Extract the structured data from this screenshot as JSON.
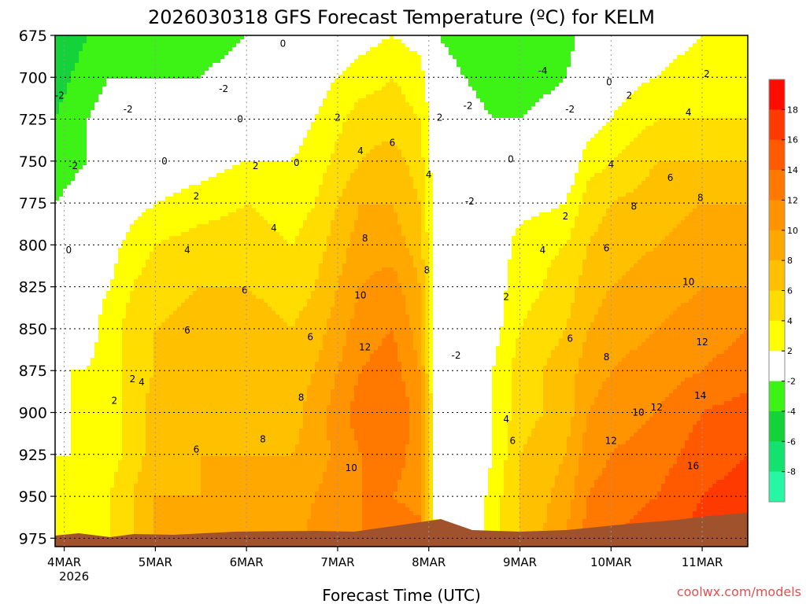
{
  "chart_data": {
    "type": "heatmap",
    "title": "2026030318 GFS Forecast Temperature (ºC) for KELM",
    "xlabel": "Forecast Time (UTC)",
    "ylabel": "",
    "credit": "coolwx.com/models",
    "x_ticks": [
      "4MAR",
      "5MAR",
      "6MAR",
      "7MAR",
      "8MAR",
      "9MAR",
      "10MAR",
      "11MAR"
    ],
    "x_year": "2026",
    "y_ticks": [
      675,
      700,
      725,
      750,
      775,
      800,
      825,
      850,
      875,
      900,
      925,
      950,
      975
    ],
    "ylim": [
      675,
      980
    ],
    "xlim_days": [
      3.9,
      11.5
    ],
    "colorbar": {
      "levels": [
        -10,
        -8,
        -6,
        -4,
        -2,
        2,
        4,
        6,
        8,
        10,
        12,
        14,
        16,
        18,
        20
      ],
      "colors": [
        "#27f7a3",
        "#13e36e",
        "#14d23a",
        "#3df316",
        "#ffffff",
        "#ffff00",
        "#ffdd00",
        "#ffc000",
        "#ffa800",
        "#ff9300",
        "#ff7800",
        "#ff5a00",
        "#ff3a00",
        "#ff0b00"
      ],
      "tick_labels": [
        "-8",
        "-6",
        "-4",
        "-2",
        "2",
        "4",
        "6",
        "8",
        "10",
        "12",
        "14",
        "16",
        "18"
      ]
    },
    "grid": true,
    "temperature_series": [
      {
        "day": 3.9,
        "profile": [
          -6,
          -5,
          -4,
          -3,
          -2,
          -1,
          0,
          1,
          2,
          1,
          2,
          3,
          2
        ]
      },
      {
        "day": 4.25,
        "profile": [
          -4,
          -3,
          -2,
          -2,
          -1,
          0,
          1,
          1,
          2,
          3,
          2,
          2,
          2
        ]
      },
      {
        "day": 4.5,
        "profile": [
          -3,
          -2,
          -1,
          0,
          0,
          1,
          2,
          3,
          3,
          3,
          3,
          4,
          4
        ]
      },
      {
        "day": 4.75,
        "profile": [
          -3,
          -2,
          -1,
          0,
          1,
          3,
          4,
          5,
          5,
          5,
          5,
          6,
          6
        ]
      },
      {
        "day": 5.0,
        "profile": [
          -3,
          -2,
          -1,
          0,
          2,
          4,
          5,
          6,
          6,
          7,
          7,
          8,
          8
        ]
      },
      {
        "day": 5.5,
        "profile": [
          -3,
          -2,
          -1,
          1,
          3,
          5,
          6,
          7,
          7,
          7,
          8,
          8,
          8
        ]
      },
      {
        "day": 6.0,
        "profile": [
          -2,
          -1,
          0,
          2,
          4,
          5,
          6,
          7,
          7,
          8,
          8,
          9,
          9
        ]
      },
      {
        "day": 6.5,
        "profile": [
          -1,
          0,
          1,
          2,
          3,
          4,
          5,
          6,
          7,
          7,
          8,
          8,
          9
        ]
      },
      {
        "day": 6.75,
        "profile": [
          0,
          1,
          2,
          3,
          4,
          5,
          6,
          7,
          8,
          9,
          9,
          10,
          11
        ]
      },
      {
        "day": 7.25,
        "profile": [
          1,
          3,
          5,
          6,
          8,
          9,
          10,
          11,
          12,
          13,
          12,
          12,
          12
        ]
      },
      {
        "day": 7.6,
        "profile": [
          2,
          4,
          5,
          7,
          8,
          9,
          11,
          12,
          13,
          14,
          13,
          12,
          14
        ]
      },
      {
        "day": 7.9,
        "profile": [
          1,
          3,
          4,
          5,
          6,
          7,
          8,
          9,
          10,
          11,
          11,
          11,
          13
        ]
      },
      {
        "day": 8.1,
        "profile": [
          -2,
          -1,
          0,
          0,
          0,
          0,
          0,
          0,
          0,
          0,
          0,
          0,
          0
        ]
      },
      {
        "day": 8.4,
        "profile": [
          -3,
          -2,
          -1,
          -1,
          -1,
          -2,
          -2,
          -2,
          -2,
          -2,
          -1,
          -1,
          0
        ]
      },
      {
        "day": 8.7,
        "profile": [
          -4,
          -3,
          -2,
          -1,
          -1,
          0,
          1,
          1,
          2,
          2,
          2,
          3,
          3
        ]
      },
      {
        "day": 9.0,
        "profile": [
          -4,
          -3,
          -2,
          -1,
          1,
          3,
          3,
          4,
          5,
          5,
          6,
          6,
          6
        ]
      },
      {
        "day": 9.5,
        "profile": [
          -3,
          -2,
          -1,
          0,
          2,
          4,
          5,
          6,
          7,
          7,
          8,
          9,
          10
        ]
      },
      {
        "day": 9.75,
        "profile": [
          -1,
          0,
          1,
          3,
          5,
          6,
          7,
          8,
          9,
          10,
          11,
          12,
          13
        ]
      },
      {
        "day": 10.0,
        "profile": [
          0,
          1,
          2,
          4,
          6,
          7,
          8,
          9,
          10,
          11,
          12,
          13,
          14
        ]
      },
      {
        "day": 10.5,
        "profile": [
          1,
          2,
          4,
          6,
          7,
          8,
          9,
          10,
          11,
          12,
          13,
          14,
          15
        ]
      },
      {
        "day": 11.0,
        "profile": [
          2,
          3,
          4,
          6,
          8,
          9,
          10,
          11,
          12,
          14,
          15,
          16,
          17
        ]
      },
      {
        "day": 11.5,
        "profile": [
          2,
          3,
          4,
          6,
          8,
          9,
          10,
          12,
          13,
          15,
          16,
          17,
          18
        ]
      }
    ],
    "contour_labels": [
      {
        "text": "0",
        "day": 8.9,
        "p": 749
      },
      {
        "text": "0",
        "day": 4.05,
        "p": 803
      },
      {
        "text": "0",
        "day": 5.1,
        "p": 750
      },
      {
        "text": "0",
        "day": 5.93,
        "p": 725
      },
      {
        "text": "0",
        "day": 6.4,
        "p": 680
      },
      {
        "text": "0",
        "day": 6.55,
        "p": 751
      },
      {
        "text": "0",
        "day": 9.98,
        "p": 703
      },
      {
        "text": "-2",
        "day": 3.95,
        "p": 711
      },
      {
        "text": "-2",
        "day": 4.1,
        "p": 753
      },
      {
        "text": "-2",
        "day": 4.7,
        "p": 719
      },
      {
        "text": "-2",
        "day": 5.75,
        "p": 707
      },
      {
        "text": "-2",
        "day": 8.43,
        "p": 717
      },
      {
        "text": "-2",
        "day": 9.55,
        "p": 719
      },
      {
        "text": "-2",
        "day": 8.45,
        "p": 774
      },
      {
        "text": "-2",
        "day": 8.3,
        "p": 866
      },
      {
        "text": "-4",
        "day": 9.25,
        "p": 696
      },
      {
        "text": "2",
        "day": 7.0,
        "p": 724
      },
      {
        "text": "2",
        "day": 6.1,
        "p": 753
      },
      {
        "text": "2",
        "day": 5.45,
        "p": 771
      },
      {
        "text": "2",
        "day": 8.12,
        "p": 724
      },
      {
        "text": "2",
        "day": 4.75,
        "p": 880
      },
      {
        "text": "2",
        "day": 4.55,
        "p": 893
      },
      {
        "text": "2",
        "day": 8.85,
        "p": 831
      },
      {
        "text": "2",
        "day": 10.2,
        "p": 711
      },
      {
        "text": "2",
        "day": 9.5,
        "p": 783
      },
      {
        "text": "2",
        "day": 11.05,
        "p": 698
      },
      {
        "text": "4",
        "day": 7.25,
        "p": 744
      },
      {
        "text": "4",
        "day": 8.0,
        "p": 758
      },
      {
        "text": "4",
        "day": 6.3,
        "p": 790
      },
      {
        "text": "4",
        "day": 5.35,
        "p": 803
      },
      {
        "text": "4",
        "day": 4.85,
        "p": 882
      },
      {
        "text": "4",
        "day": 9.25,
        "p": 803
      },
      {
        "text": "4",
        "day": 10.0,
        "p": 752
      },
      {
        "text": "4",
        "day": 10.85,
        "p": 721
      },
      {
        "text": "4",
        "day": 8.85,
        "p": 904
      },
      {
        "text": "6",
        "day": 7.6,
        "p": 739
      },
      {
        "text": "6",
        "day": 5.98,
        "p": 827
      },
      {
        "text": "6",
        "day": 5.35,
        "p": 851
      },
      {
        "text": "6",
        "day": 6.7,
        "p": 855
      },
      {
        "text": "6",
        "day": 5.45,
        "p": 922
      },
      {
        "text": "6",
        "day": 9.95,
        "p": 802
      },
      {
        "text": "6",
        "day": 9.55,
        "p": 856
      },
      {
        "text": "6",
        "day": 10.65,
        "p": 760
      },
      {
        "text": "6",
        "day": 8.92,
        "p": 917
      },
      {
        "text": "8",
        "day": 7.3,
        "p": 796
      },
      {
        "text": "8",
        "day": 7.98,
        "p": 815
      },
      {
        "text": "8",
        "day": 6.6,
        "p": 891
      },
      {
        "text": "8",
        "day": 6.18,
        "p": 916
      },
      {
        "text": "8",
        "day": 9.95,
        "p": 867
      },
      {
        "text": "8",
        "day": 10.25,
        "p": 777
      },
      {
        "text": "8",
        "day": 10.98,
        "p": 772
      },
      {
        "text": "10",
        "day": 7.25,
        "p": 830
      },
      {
        "text": "10",
        "day": 7.15,
        "p": 933
      },
      {
        "text": "10",
        "day": 10.3,
        "p": 900
      },
      {
        "text": "10",
        "day": 10.85,
        "p": 822
      },
      {
        "text": "12",
        "day": 7.3,
        "p": 861
      },
      {
        "text": "12",
        "day": 10.0,
        "p": 917
      },
      {
        "text": "12",
        "day": 10.5,
        "p": 897
      },
      {
        "text": "12",
        "day": 11.0,
        "p": 858
      },
      {
        "text": "14",
        "day": 10.98,
        "p": 890
      },
      {
        "text": "16",
        "day": 10.9,
        "p": 932
      }
    ]
  }
}
